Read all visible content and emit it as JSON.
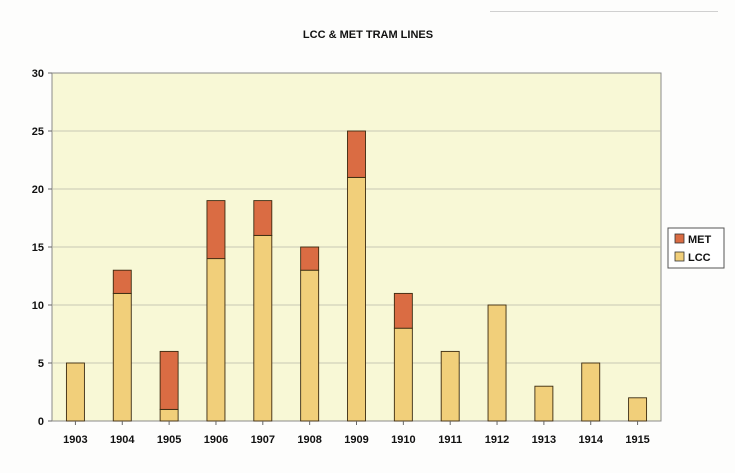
{
  "chart_data": {
    "type": "bar",
    "stacked": true,
    "title": "LCC & MET TRAM LINES",
    "xlabel": "",
    "ylabel": "",
    "categories": [
      "1903",
      "1904",
      "1905",
      "1906",
      "1907",
      "1908",
      "1909",
      "1910",
      "1911",
      "1912",
      "1913",
      "1914",
      "1915"
    ],
    "series": [
      {
        "name": "LCC",
        "color": "#f1cf7a",
        "values": [
          5,
          11,
          1,
          14,
          16,
          13,
          21,
          8,
          6,
          10,
          3,
          5,
          2
        ]
      },
      {
        "name": "MET",
        "color": "#da6c43",
        "values": [
          0,
          2,
          5,
          5,
          3,
          2,
          4,
          3,
          0,
          0,
          0,
          0,
          0
        ]
      }
    ],
    "ylim": [
      0,
      30
    ],
    "yticks": [
      "0",
      "5",
      "10",
      "15",
      "20",
      "25",
      "30"
    ],
    "grid": true,
    "plot_background": "#f8f8d6",
    "legend": {
      "placement": "right",
      "entries": [
        "MET",
        "LCC"
      ]
    }
  }
}
